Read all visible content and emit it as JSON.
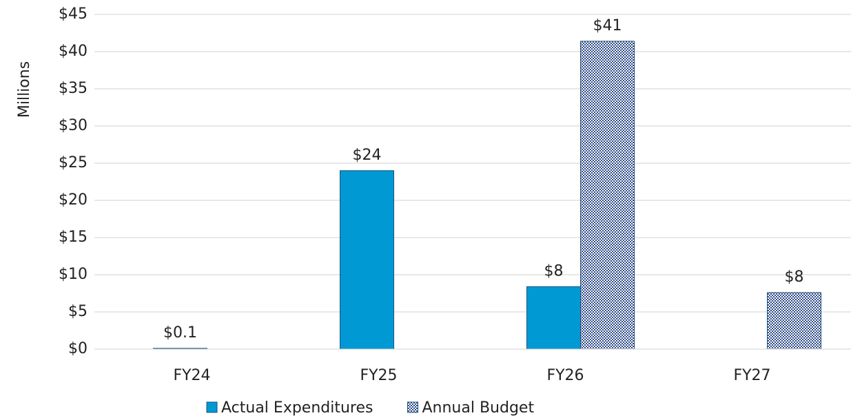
{
  "chart_data": {
    "type": "bar",
    "y_label": "Millions",
    "categories": [
      "FY24",
      "FY25",
      "FY26",
      "FY27"
    ],
    "series": [
      {
        "name": "Actual Expenditures",
        "color": "#0099d4",
        "pattern": false,
        "values": [
          0.1,
          24,
          8.4,
          null
        ],
        "value_labels": [
          "$0.1",
          "$24",
          "$8",
          null
        ]
      },
      {
        "name": "Annual Budget",
        "color": "#2e4a8a",
        "pattern": true,
        "values": [
          null,
          null,
          41.4,
          7.6
        ],
        "value_labels": [
          null,
          null,
          "$41",
          "$8"
        ]
      }
    ],
    "ylim": [
      0,
      45
    ],
    "yticks": [
      {
        "value": 0,
        "label": "$0"
      },
      {
        "value": 5,
        "label": "$5"
      },
      {
        "value": 10,
        "label": "$10"
      },
      {
        "value": 15,
        "label": "$15"
      },
      {
        "value": 20,
        "label": "$20"
      },
      {
        "value": 25,
        "label": "$25"
      },
      {
        "value": 30,
        "label": "$30"
      },
      {
        "value": 35,
        "label": "$35"
      },
      {
        "value": 40,
        "label": "$40"
      },
      {
        "value": 45,
        "label": "$45"
      }
    ],
    "grid": true,
    "legend": "bottom"
  }
}
